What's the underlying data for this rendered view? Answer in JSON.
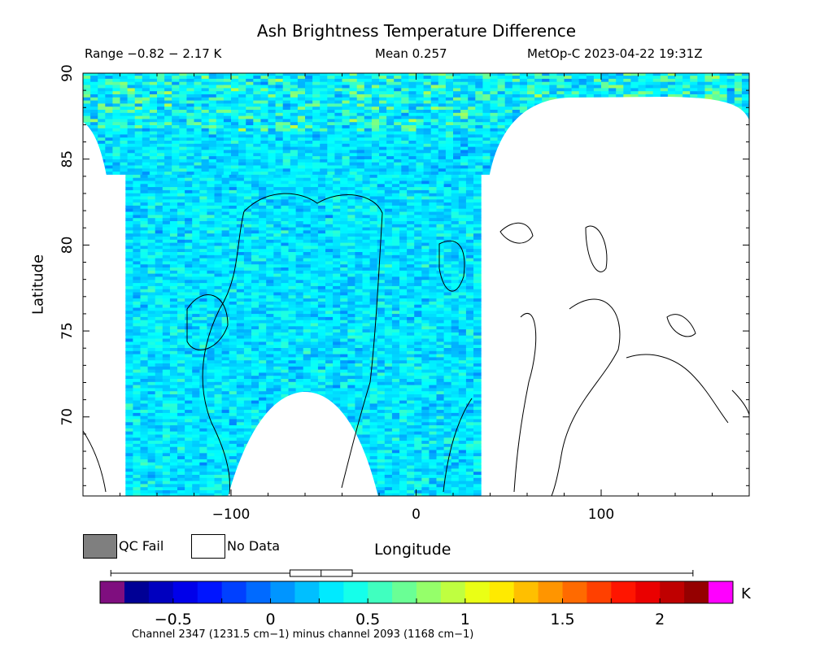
{
  "chart_data": {
    "type": "heatmap",
    "title": "Ash Brightness Temperature Difference",
    "subtitle_range": "Range −0.82 − 2.17 K",
    "subtitle_mean": "Mean 0.257",
    "subtitle_satellite": "MetOp-C 2023-04-22 19:31Z",
    "xlabel": "Longitude",
    "ylabel": "Latitude",
    "xlim": [
      -180,
      180
    ],
    "ylim": [
      65.4,
      90
    ],
    "x_ticks": [
      -100,
      0,
      100
    ],
    "x_tick_labels": [
      "−100",
      "0",
      "100"
    ],
    "y_ticks": [
      70,
      75,
      80,
      85,
      90
    ],
    "y_tick_labels": [
      "70",
      "75",
      "80",
      "85",
      "90"
    ],
    "value_range": [
      -0.82,
      2.17
    ],
    "mean": 0.257,
    "colorbar": {
      "min": -0.75,
      "max": 2.25,
      "ticks": [
        -0.5,
        0,
        0.5,
        1,
        1.5,
        2
      ],
      "tick_labels": [
        "−0.5",
        "0",
        "0.5",
        "1",
        "1.5",
        "2"
      ],
      "unit": "K",
      "under_color": "#7f0e7f",
      "over_color": "#ff00ff",
      "box_whisker": {
        "min": -0.82,
        "q1": 0.1,
        "median": 0.26,
        "q3": 0.42,
        "max": 2.17
      }
    },
    "legend": [
      {
        "label": "QC Fail",
        "color": "#7f7f7f"
      },
      {
        "label": "No Data",
        "color": "#ffffff"
      }
    ],
    "channel_note": "Channel 2347 (1231.5 cm−1) minus channel 2093 (1168 cm−1)",
    "swath_lon_range": [
      -157,
      35
    ],
    "typical_value": 0.3
  }
}
